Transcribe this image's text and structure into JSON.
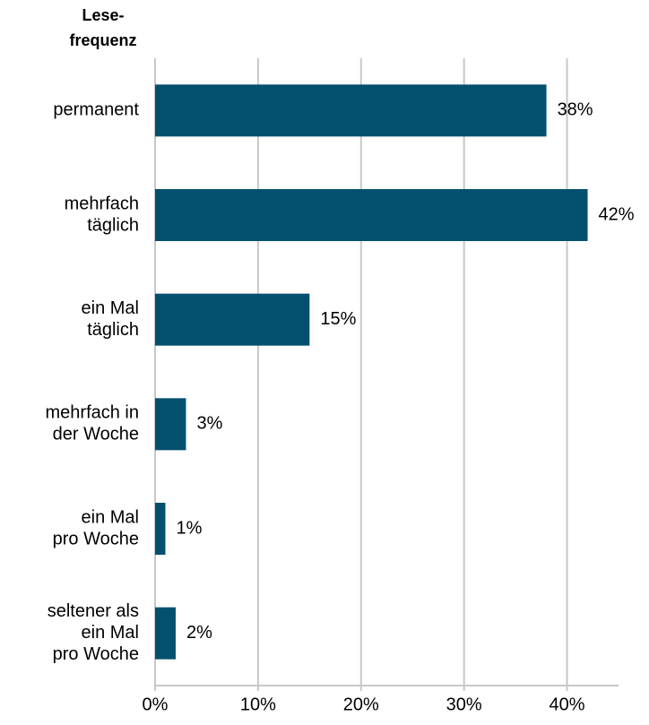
{
  "chart_data": {
    "type": "hbar",
    "title": [
      "Lese-",
      "frequenz"
    ],
    "categories": [
      [
        "permanent"
      ],
      [
        "mehrfach",
        "täglich"
      ],
      [
        "ein Mal",
        "täglich"
      ],
      [
        "mehrfach in",
        "der Woche"
      ],
      [
        "ein Mal",
        "pro Woche"
      ],
      [
        "seltener als",
        "ein Mal",
        "pro Woche"
      ]
    ],
    "values": [
      38,
      42,
      15,
      3,
      1,
      2
    ],
    "value_labels": [
      "38%",
      "42%",
      "15%",
      "3%",
      "1%",
      "2%"
    ],
    "color": "#03506e",
    "xlim": [
      0,
      45
    ],
    "xticks": [
      {
        "value": 0,
        "label": "0%"
      },
      {
        "value": 10,
        "label": "10%"
      },
      {
        "value": 20,
        "label": "20%"
      },
      {
        "value": 30,
        "label": "30%"
      },
      {
        "value": 40,
        "label": "40%"
      }
    ],
    "grid": true
  }
}
